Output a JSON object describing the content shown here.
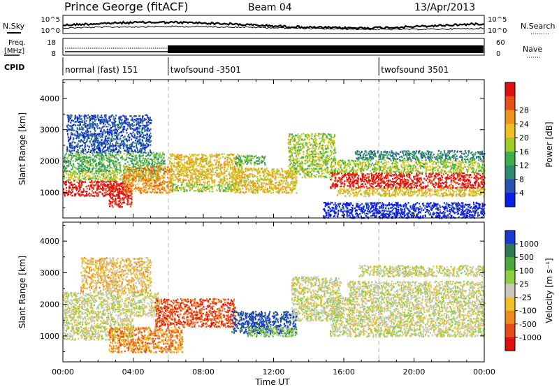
{
  "header": {
    "station": "Prince George (fitACF)",
    "beam": "Beam 04",
    "date": "13/Apr/2013"
  },
  "strip_labels": {
    "nsky": "N.Sky",
    "freq_line1": "Freq.",
    "freq_line2": "[MHz]",
    "cpid": "CPID",
    "nsearch": "N.Search",
    "nave": "Nave",
    "nsky_ticks": [
      "10^5",
      "10^0"
    ],
    "nsearch_ticks": [
      "10^5",
      "10^0"
    ],
    "freq_ticks": [
      "18",
      "8"
    ],
    "nave_ticks": [
      "60",
      "0"
    ]
  },
  "cpid_segments": [
    {
      "label": "normal (fast) 151",
      "start_hour": 0
    },
    {
      "label": "twofsound -3501",
      "start_hour": 6
    },
    {
      "label": "twofsound 3501",
      "start_hour": 18
    }
  ],
  "chart_data": [
    {
      "type": "heatmap",
      "name": "power",
      "ylabel": "Slant Range [km]",
      "ylim": [
        180,
        4600
      ],
      "yticks": [
        1000,
        2000,
        3000,
        4000
      ],
      "xlim": [
        0,
        24
      ],
      "colorbar": {
        "label": "Power [dB]",
        "ticks": [
          "4",
          "8",
          "12",
          "16",
          "20",
          "24",
          "28"
        ],
        "colors": [
          "#0a1ee8",
          "#2a52b0",
          "#2f8a70",
          "#3fb04a",
          "#9fcc2a",
          "#f0c020",
          "#f0901e",
          "#e85018",
          "#e01010"
        ]
      },
      "bands": [
        {
          "t0": 0.0,
          "t1": 3.6,
          "r0": 900,
          "r1": 1400,
          "level": 8
        },
        {
          "t0": 0.0,
          "t1": 5.5,
          "r0": 1400,
          "r1": 1700,
          "level": 4
        },
        {
          "t0": 0.0,
          "t1": 5.8,
          "r0": 1700,
          "r1": 2300,
          "level": 3
        },
        {
          "t0": 0.2,
          "t1": 5.0,
          "r0": 2300,
          "r1": 3500,
          "level": 1
        },
        {
          "t0": 2.6,
          "t1": 3.9,
          "r0": 550,
          "r1": 1300,
          "level": 8
        },
        {
          "t0": 3.4,
          "t1": 6.2,
          "r0": 1000,
          "r1": 1850,
          "level": 6
        },
        {
          "t0": 6.0,
          "t1": 10.2,
          "r0": 1300,
          "r1": 2250,
          "level": 5
        },
        {
          "t0": 6.2,
          "t1": 10.0,
          "r0": 1050,
          "r1": 1300,
          "level": 4
        },
        {
          "t0": 9.6,
          "t1": 13.3,
          "r0": 1000,
          "r1": 1800,
          "level": 5
        },
        {
          "t0": 9.8,
          "t1": 11.5,
          "r0": 1900,
          "r1": 2200,
          "level": 3
        },
        {
          "t0": 12.8,
          "t1": 15.5,
          "r0": 1500,
          "r1": 2900,
          "level": 4
        },
        {
          "t0": 15.2,
          "t1": 24.0,
          "r0": 1150,
          "r1": 1650,
          "level": 8
        },
        {
          "t0": 15.6,
          "t1": 24.0,
          "r0": 900,
          "r1": 1150,
          "level": 5
        },
        {
          "t0": 15.6,
          "t1": 24.0,
          "r0": 1650,
          "r1": 2050,
          "level": 4
        },
        {
          "t0": 16.6,
          "t1": 24.0,
          "r0": 2050,
          "r1": 2350,
          "level": 2
        },
        {
          "t0": 14.8,
          "t1": 24.0,
          "r0": 200,
          "r1": 700,
          "level": 0
        }
      ]
    },
    {
      "type": "heatmap",
      "name": "velocity",
      "ylabel": "Slant Range [km]",
      "ylim": [
        180,
        4600
      ],
      "yticks": [
        1000,
        2000,
        3000,
        4000
      ],
      "xlim": [
        0,
        24
      ],
      "xlabel": "Time UT",
      "xticks": [
        "00:00",
        "04:00",
        "08:00",
        "12:00",
        "16:00",
        "20:00",
        "00:00"
      ],
      "colorbar": {
        "label": "Velocity [m s⁻¹]",
        "ticks": [
          "1000",
          "500",
          "100",
          "25",
          "-25",
          "-100",
          "-500",
          "-1000"
        ],
        "colors": [
          "#1a3ad0",
          "#2e7a50",
          "#4aaa3a",
          "#8ad040",
          "#c8c8c0",
          "#f0c028",
          "#f08a20",
          "#e84a18",
          "#e01010"
        ]
      },
      "bands": [
        {
          "t0": 0.0,
          "t1": 4.0,
          "r0": 900,
          "r1": 1650,
          "level": 4
        },
        {
          "t0": 0.0,
          "t1": 5.5,
          "r0": 1650,
          "r1": 2400,
          "level": 4
        },
        {
          "t0": 1.0,
          "t1": 5.0,
          "r0": 2400,
          "r1": 3500,
          "level": 5
        },
        {
          "t0": 2.6,
          "t1": 6.8,
          "r0": 500,
          "r1": 1300,
          "level": 6
        },
        {
          "t0": 5.2,
          "t1": 9.8,
          "r0": 1300,
          "r1": 2200,
          "level": 7
        },
        {
          "t0": 9.6,
          "t1": 13.3,
          "r0": 1100,
          "r1": 1800,
          "level": 0
        },
        {
          "t0": 10.5,
          "t1": 13.3,
          "r0": 1000,
          "r1": 1300,
          "level": 3
        },
        {
          "t0": 13.0,
          "t1": 15.8,
          "r0": 1500,
          "r1": 2900,
          "level": 4
        },
        {
          "t0": 15.2,
          "t1": 24.0,
          "r0": 1000,
          "r1": 2250,
          "level": 4
        },
        {
          "t0": 16.2,
          "t1": 24.0,
          "r0": 2250,
          "r1": 2750,
          "level": 4
        },
        {
          "t0": 16.8,
          "t1": 24.0,
          "r0": 2900,
          "r1": 3250,
          "level": 4
        }
      ]
    }
  ]
}
